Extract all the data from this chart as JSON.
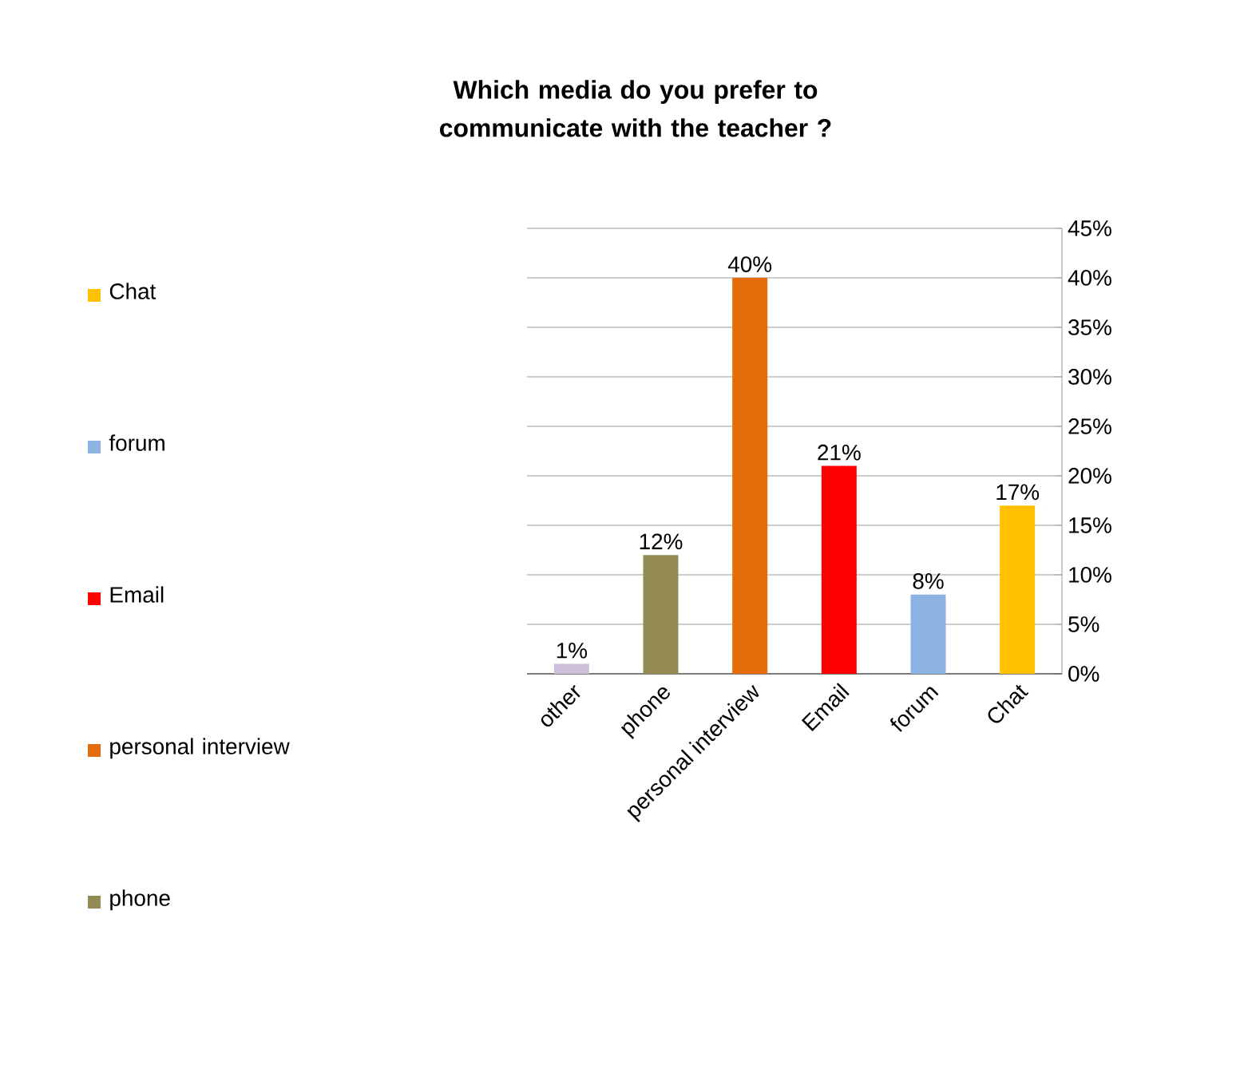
{
  "chart_data": {
    "type": "bar",
    "title": "Which media  do you prefer to communicate  with  the teacher ?",
    "categories": [
      "other",
      "phone",
      "personal interview",
      "Email",
      "forum",
      "Chat"
    ],
    "series": [
      {
        "color": "#ccc0da",
        "values": [
          1,
          null,
          null,
          null,
          null,
          null
        ],
        "value_labels": [
          "1%",
          null,
          null,
          null,
          null,
          null
        ]
      },
      {
        "name": "phone",
        "color": "#948a54",
        "values": [
          null,
          12,
          null,
          null,
          null,
          null
        ],
        "value_labels": [
          null,
          "12%",
          null,
          null,
          null,
          null
        ]
      },
      {
        "name": "personal interview",
        "color": "#e46c0a",
        "values": [
          null,
          null,
          40,
          null,
          null,
          null
        ],
        "value_labels": [
          null,
          null,
          "40%",
          null,
          null,
          null
        ]
      },
      {
        "name": "Email",
        "color": "#ff0000",
        "values": [
          null,
          null,
          null,
          21,
          null,
          null
        ],
        "value_labels": [
          null,
          null,
          null,
          "21%",
          null,
          null
        ]
      },
      {
        "name": "forum",
        "color": "#8db3e2",
        "values": [
          null,
          null,
          null,
          null,
          8,
          null
        ],
        "value_labels": [
          null,
          null,
          null,
          null,
          "8%",
          null
        ]
      },
      {
        "name": "Chat",
        "color": "#ffc000",
        "values": [
          null,
          null,
          null,
          null,
          null,
          17
        ],
        "value_labels": [
          null,
          null,
          null,
          null,
          null,
          "17%"
        ]
      }
    ],
    "ylim": [
      0,
      45
    ],
    "yticks": [
      {
        "value": 0,
        "label": "0%"
      },
      {
        "value": 5,
        "label": "5%"
      },
      {
        "value": 10,
        "label": "10%"
      },
      {
        "value": 15,
        "label": "15%"
      },
      {
        "value": 20,
        "label": "20%"
      },
      {
        "value": 25,
        "label": "25%"
      },
      {
        "value": 30,
        "label": "30%"
      },
      {
        "value": 35,
        "label": "35%"
      },
      {
        "value": 40,
        "label": "40%"
      },
      {
        "value": 45,
        "label": "45%"
      }
    ],
    "grid": "y",
    "legend": "left"
  }
}
